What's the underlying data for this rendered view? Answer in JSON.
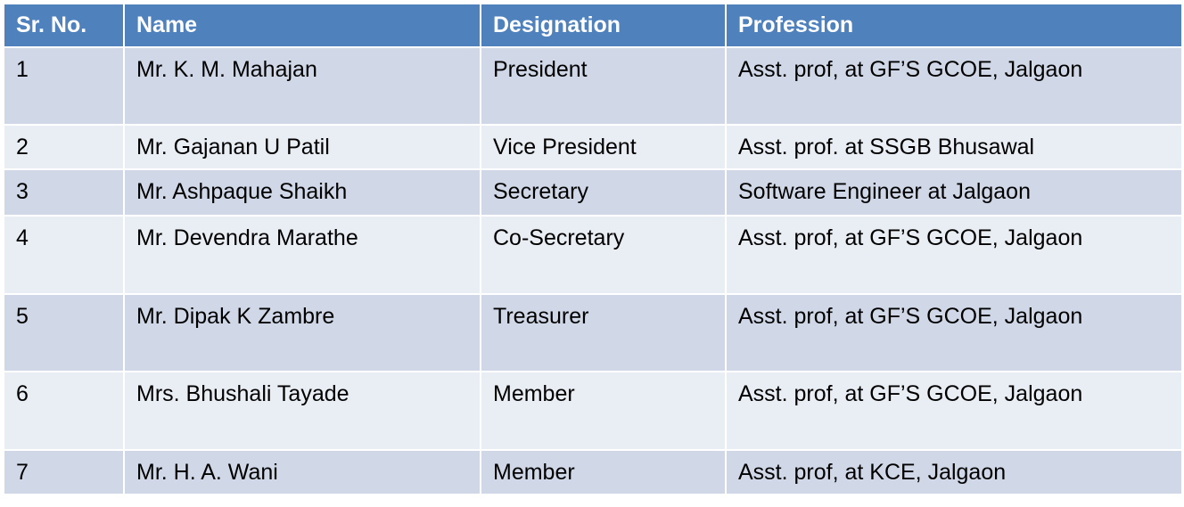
{
  "table": {
    "header": [
      "Sr. No.",
      "Name",
      "Designation",
      "Profession"
    ],
    "rows": [
      [
        "1",
        "Mr. K. M. Mahajan",
        "President",
        "Asst. prof, at GF’S GCOE, Jalgaon"
      ],
      [
        "2",
        "Mr. Gajanan U Patil",
        "Vice President",
        "Asst. prof. at SSGB Bhusawal"
      ],
      [
        "3",
        "Mr. Ashpaque  Shaikh",
        "Secretary",
        "Software Engineer at Jalgaon"
      ],
      [
        "4",
        "Mr. Devendra  Marathe",
        "Co-Secretary",
        "Asst. prof, at GF’S GCOE, Jalgaon"
      ],
      [
        "5",
        "Mr. Dipak K Zambre",
        "Treasurer",
        "Asst. prof, at GF’S GCOE, Jalgaon"
      ],
      [
        "6",
        "Mrs. Bhushali Tayade",
        "Member",
        "Asst. prof, at GF’S GCOE, Jalgaon"
      ],
      [
        "7",
        "Mr. H. A. Wani",
        "Member",
        "Asst. prof, at KCE, Jalgaon"
      ]
    ]
  }
}
